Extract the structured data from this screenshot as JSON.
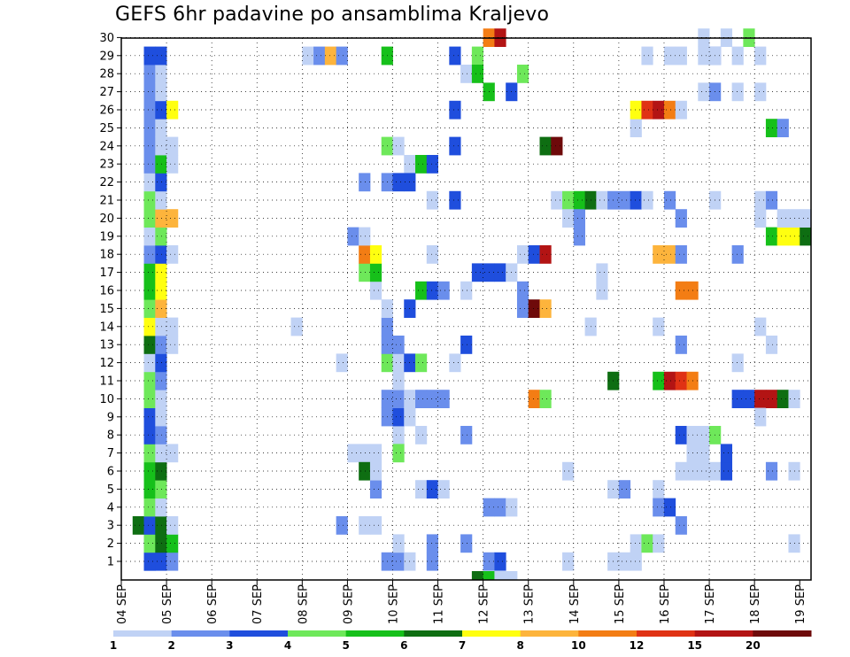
{
  "chart_data": {
    "type": "heatmap",
    "title": "GEFS 6hr padavine po ansamblima Kraljevo",
    "x_tick_labels": [
      "04 SEP",
      "05 SEP",
      "06 SEP",
      "07 SEP",
      "08 SEP",
      "09 SEP",
      "10 SEP",
      "11 SEP",
      "12 SEP",
      "13 SEP",
      "14 SEP",
      "15 SEP",
      "16 SEP",
      "17 SEP",
      "18 SEP",
      "19 SEP"
    ],
    "y_tick_labels": [
      "1",
      "2",
      "3",
      "4",
      "5",
      "6",
      "7",
      "8",
      "9",
      "10",
      "11",
      "12",
      "13",
      "14",
      "15",
      "16",
      "17",
      "18",
      "19",
      "20",
      "21",
      "22",
      "23",
      "24",
      "25",
      "26",
      "27",
      "28",
      "29",
      "30"
    ],
    "grid": true,
    "legend_placement": "bottom",
    "colorbar": {
      "colors": [
        "#c0d2f5",
        "#6a8eec",
        "#1f4edd",
        "#6ee85a",
        "#16c01a",
        "#0e6e12",
        "#ffff10",
        "#fdb43c",
        "#f37d14",
        "#e03214",
        "#b31414",
        "#6e0a0a"
      ],
      "labels": [
        "1",
        "2",
        "3",
        "4",
        "5",
        "6",
        "7",
        "8",
        "10",
        "12",
        "15",
        "20"
      ]
    },
    "cells": [
      [
        2,
        1,
        1
      ],
      [
        2,
        1,
        2
      ],
      [
        2,
        1,
        3
      ],
      [
        2,
        2,
        3
      ],
      [
        2,
        2,
        4
      ],
      [
        2,
        3,
        4
      ],
      [
        1,
        3,
        6
      ],
      [
        2,
        3,
        3
      ],
      [
        2,
        4,
        4
      ],
      [
        2,
        5,
        5
      ],
      [
        2,
        6,
        5
      ],
      [
        2,
        7,
        4
      ],
      [
        2,
        8,
        3
      ],
      [
        2,
        9,
        3
      ],
      [
        2,
        10,
        4
      ],
      [
        2,
        11,
        4
      ],
      [
        2,
        12,
        1
      ],
      [
        2,
        13,
        6
      ],
      [
        2,
        14,
        7
      ],
      [
        2,
        15,
        4
      ],
      [
        2,
        16,
        5
      ],
      [
        2,
        17,
        5
      ],
      [
        2,
        18,
        2
      ],
      [
        2,
        19,
        1
      ],
      [
        2,
        20,
        4
      ],
      [
        2,
        21,
        4
      ],
      [
        2,
        22,
        1
      ],
      [
        2,
        23,
        2
      ],
      [
        2,
        24,
        2
      ],
      [
        2,
        25,
        2
      ],
      [
        2,
        26,
        2
      ],
      [
        2,
        27,
        2
      ],
      [
        2,
        28,
        2
      ],
      [
        2,
        29,
        3
      ],
      [
        3,
        1,
        3
      ],
      [
        3,
        2,
        6
      ],
      [
        3,
        3,
        6
      ],
      [
        3,
        4,
        1
      ],
      [
        3,
        5,
        4
      ],
      [
        3,
        6,
        6
      ],
      [
        3,
        7,
        1
      ],
      [
        3,
        8,
        2
      ],
      [
        3,
        9,
        1
      ],
      [
        3,
        10,
        1
      ],
      [
        3,
        11,
        2
      ],
      [
        3,
        12,
        3
      ],
      [
        3,
        13,
        2
      ],
      [
        3,
        14,
        1
      ],
      [
        3,
        15,
        8
      ],
      [
        3,
        16,
        7
      ],
      [
        3,
        17,
        7
      ],
      [
        3,
        18,
        3
      ],
      [
        3,
        19,
        4
      ],
      [
        3,
        20,
        8
      ],
      [
        3,
        21,
        1
      ],
      [
        3,
        22,
        3
      ],
      [
        3,
        23,
        5
      ],
      [
        3,
        24,
        1
      ],
      [
        3,
        25,
        1
      ],
      [
        3,
        26,
        3
      ],
      [
        3,
        27,
        1
      ],
      [
        3,
        28,
        1
      ],
      [
        3,
        29,
        3
      ],
      [
        4,
        1,
        2
      ],
      [
        4,
        2,
        5
      ],
      [
        4,
        3,
        1
      ],
      [
        4,
        7,
        1
      ],
      [
        4,
        13,
        1
      ],
      [
        4,
        14,
        1
      ],
      [
        4,
        18,
        1
      ],
      [
        4,
        20,
        8
      ],
      [
        4,
        23,
        1
      ],
      [
        4,
        24,
        1
      ],
      [
        4,
        26,
        7
      ],
      [
        16,
        29,
        1
      ],
      [
        17,
        29,
        2
      ],
      [
        18,
        29,
        8
      ],
      [
        19,
        29,
        2
      ],
      [
        15,
        14,
        1
      ],
      [
        19,
        3,
        2
      ],
      [
        19,
        12,
        1
      ],
      [
        20,
        7,
        1
      ],
      [
        20,
        19,
        2
      ],
      [
        21,
        7,
        1
      ],
      [
        21,
        6,
        6
      ],
      [
        21,
        17,
        4
      ],
      [
        21,
        18,
        9
      ],
      [
        21,
        19,
        1
      ],
      [
        21,
        22,
        2
      ],
      [
        21,
        3,
        1
      ],
      [
        22,
        5,
        2
      ],
      [
        22,
        6,
        1
      ],
      [
        22,
        7,
        1
      ],
      [
        22,
        16,
        1
      ],
      [
        22,
        17,
        5
      ],
      [
        22,
        18,
        7
      ],
      [
        22,
        3,
        1
      ],
      [
        23,
        1,
        2
      ],
      [
        23,
        12,
        4
      ],
      [
        23,
        13,
        2
      ],
      [
        23,
        14,
        2
      ],
      [
        23,
        15,
        1
      ],
      [
        23,
        9,
        2
      ],
      [
        23,
        10,
        2
      ],
      [
        23,
        22,
        2
      ],
      [
        23,
        24,
        4
      ],
      [
        23,
        29,
        5
      ],
      [
        24,
        1,
        2
      ],
      [
        24,
        2,
        1
      ],
      [
        24,
        8,
        1
      ],
      [
        24,
        9,
        3
      ],
      [
        24,
        10,
        2
      ],
      [
        24,
        11,
        1
      ],
      [
        24,
        12,
        1
      ],
      [
        24,
        13,
        2
      ],
      [
        24,
        7,
        4
      ],
      [
        24,
        22,
        3
      ],
      [
        24,
        24,
        1
      ],
      [
        25,
        1,
        1
      ],
      [
        25,
        9,
        1
      ],
      [
        25,
        10,
        1
      ],
      [
        25,
        12,
        3
      ],
      [
        25,
        15,
        3
      ],
      [
        25,
        23,
        1
      ],
      [
        25,
        22,
        3
      ],
      [
        26,
        5,
        1
      ],
      [
        26,
        8,
        1
      ],
      [
        26,
        10,
        2
      ],
      [
        26,
        12,
        4
      ],
      [
        26,
        16,
        5
      ],
      [
        26,
        23,
        5
      ],
      [
        27,
        5,
        3
      ],
      [
        27,
        10,
        2
      ],
      [
        27,
        16,
        3
      ],
      [
        27,
        2,
        2
      ],
      [
        27,
        1,
        2
      ],
      [
        27,
        18,
        1
      ],
      [
        27,
        21,
        1
      ],
      [
        27,
        23,
        3
      ],
      [
        28,
        5,
        1
      ],
      [
        28,
        10,
        2
      ],
      [
        28,
        16,
        2
      ],
      [
        29,
        12,
        1
      ],
      [
        29,
        21,
        3
      ],
      [
        29,
        24,
        3
      ],
      [
        29,
        26,
        3
      ],
      [
        29,
        29,
        3
      ],
      [
        30,
        2,
        2
      ],
      [
        30,
        8,
        2
      ],
      [
        30,
        13,
        3
      ],
      [
        30,
        16,
        1
      ],
      [
        30,
        28,
        1
      ],
      [
        31,
        17,
        3
      ],
      [
        31,
        29,
        4
      ],
      [
        31,
        0,
        6
      ],
      [
        31,
        28,
        5
      ],
      [
        32,
        1,
        2
      ],
      [
        32,
        4,
        2
      ],
      [
        32,
        17,
        3
      ],
      [
        32,
        0,
        5
      ],
      [
        32,
        30,
        9
      ],
      [
        32,
        27,
        5
      ],
      [
        33,
        1,
        3
      ],
      [
        33,
        4,
        2
      ],
      [
        33,
        17,
        3
      ],
      [
        33,
        0,
        1
      ],
      [
        33,
        30,
        11
      ],
      [
        34,
        0,
        1
      ],
      [
        34,
        4,
        1
      ],
      [
        34,
        17,
        1
      ],
      [
        34,
        27,
        3
      ],
      [
        35,
        16,
        2
      ],
      [
        35,
        18,
        1
      ],
      [
        35,
        15,
        2
      ],
      [
        35,
        28,
        4
      ],
      [
        36,
        15,
        12
      ],
      [
        36,
        18,
        3
      ],
      [
        36,
        10,
        9
      ],
      [
        37,
        15,
        8
      ],
      [
        37,
        18,
        11
      ],
      [
        37,
        10,
        4
      ],
      [
        37,
        24,
        6
      ],
      [
        38,
        24,
        12
      ],
      [
        38,
        21,
        1
      ],
      [
        39,
        1,
        1
      ],
      [
        39,
        21,
        4
      ],
      [
        39,
        20,
        1
      ],
      [
        39,
        6,
        1
      ],
      [
        40,
        20,
        1
      ],
      [
        40,
        19,
        2
      ],
      [
        40,
        21,
        5
      ],
      [
        40,
        20,
        2
      ],
      [
        41,
        21,
        6
      ],
      [
        41,
        14,
        1
      ],
      [
        42,
        17,
        1
      ],
      [
        42,
        21,
        1
      ],
      [
        42,
        16,
        1
      ],
      [
        43,
        1,
        1
      ],
      [
        43,
        5,
        1
      ],
      [
        43,
        21,
        2
      ],
      [
        43,
        11,
        6
      ],
      [
        44,
        1,
        1
      ],
      [
        44,
        5,
        2
      ],
      [
        44,
        21,
        2
      ],
      [
        45,
        2,
        1
      ],
      [
        45,
        21,
        3
      ],
      [
        45,
        25,
        1
      ],
      [
        45,
        26,
        7
      ],
      [
        45,
        1,
        1
      ],
      [
        46,
        2,
        4
      ],
      [
        46,
        21,
        1
      ],
      [
        46,
        26,
        10
      ],
      [
        46,
        29,
        1
      ],
      [
        47,
        2,
        1
      ],
      [
        47,
        11,
        5
      ],
      [
        47,
        26,
        11
      ],
      [
        47,
        18,
        8
      ],
      [
        47,
        5,
        1
      ],
      [
        47,
        4,
        2
      ],
      [
        47,
        14,
        1
      ],
      [
        48,
        11,
        11
      ],
      [
        48,
        4,
        3
      ],
      [
        48,
        18,
        8
      ],
      [
        48,
        26,
        9
      ],
      [
        48,
        21,
        2
      ],
      [
        48,
        29,
        1
      ],
      [
        49,
        11,
        10
      ],
      [
        49,
        16,
        9
      ],
      [
        49,
        26,
        1
      ],
      [
        49,
        3,
        2
      ],
      [
        49,
        8,
        3
      ],
      [
        49,
        13,
        2
      ],
      [
        49,
        20,
        2
      ],
      [
        49,
        18,
        2
      ],
      [
        49,
        29,
        1
      ],
      [
        49,
        6,
        1
      ],
      [
        50,
        16,
        9
      ],
      [
        50,
        11,
        9
      ],
      [
        50,
        6,
        1
      ],
      [
        50,
        7,
        1
      ],
      [
        50,
        8,
        1
      ],
      [
        51,
        6,
        1
      ],
      [
        51,
        7,
        1
      ],
      [
        51,
        8,
        1
      ],
      [
        51,
        27,
        1
      ],
      [
        51,
        29,
        1
      ],
      [
        51,
        30,
        1
      ],
      [
        52,
        8,
        4
      ],
      [
        52,
        27,
        2
      ],
      [
        52,
        29,
        2
      ],
      [
        52,
        6,
        1
      ],
      [
        52,
        21,
        1
      ],
      [
        52,
        29,
        1
      ],
      [
        53,
        6,
        3
      ],
      [
        53,
        7,
        3
      ],
      [
        53,
        30,
        1
      ],
      [
        54,
        18,
        2
      ],
      [
        54,
        10,
        3
      ],
      [
        54,
        12,
        1
      ],
      [
        54,
        27,
        1
      ],
      [
        54,
        29,
        1
      ],
      [
        55,
        10,
        3
      ],
      [
        55,
        30,
        4
      ],
      [
        56,
        10,
        11
      ],
      [
        56,
        27,
        1
      ],
      [
        56,
        29,
        1
      ],
      [
        56,
        9,
        1
      ],
      [
        56,
        14,
        1
      ],
      [
        56,
        20,
        1
      ],
      [
        56,
        21,
        1
      ],
      [
        57,
        10,
        11
      ],
      [
        57,
        25,
        5
      ],
      [
        57,
        21,
        2
      ],
      [
        57,
        19,
        5
      ],
      [
        57,
        6,
        2
      ],
      [
        57,
        13,
        1
      ],
      [
        58,
        10,
        6
      ],
      [
        58,
        25,
        2
      ],
      [
        58,
        19,
        7
      ],
      [
        58,
        20,
        1
      ],
      [
        59,
        10,
        1
      ],
      [
        59,
        19,
        7
      ],
      [
        59,
        20,
        1
      ],
      [
        59,
        2,
        1
      ],
      [
        59,
        6,
        1
      ],
      [
        60,
        19,
        6
      ],
      [
        60,
        20,
        1
      ]
    ]
  }
}
